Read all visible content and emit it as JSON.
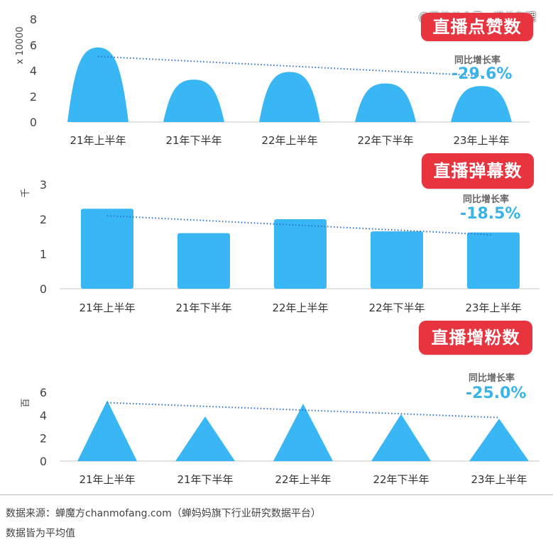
{
  "watermark": "@微信公众号：道总有理",
  "footer": {
    "source": "数据来源：蝉魔方chanmofang.com（蝉妈妈旗下行业研究数据平台）",
    "note": "数据皆为平均值"
  },
  "colors": {
    "accent": "#39b7f5",
    "badge": "#e8343f",
    "yoy": "#3ab4e8",
    "trend": "#2a6fd1"
  },
  "chart_data": [
    {
      "type": "bar",
      "shape": "bell",
      "title": "直播点赞数",
      "ylabel": "x 10000",
      "ylim": [
        0,
        8
      ],
      "yticks": [
        0,
        2,
        4,
        6,
        8
      ],
      "categories": [
        "21年上半年",
        "21年下半年",
        "22年上半年",
        "22年下半年",
        "23年上半年"
      ],
      "values": [
        5.8,
        3.3,
        3.9,
        3.0,
        2.8
      ],
      "trendline": [
        5.1,
        3.6
      ],
      "yoy_label": "同比增长率",
      "yoy_value": "-29.6%"
    },
    {
      "type": "bar",
      "title": "直播弹幕数",
      "ylabel": "千",
      "ylim": [
        0,
        3
      ],
      "yticks": [
        0,
        1,
        2,
        3
      ],
      "categories": [
        "21年上半年",
        "21年下半年",
        "22年上半年",
        "22年下半年",
        "23年上半年"
      ],
      "values": [
        2.3,
        1.6,
        2.0,
        1.65,
        1.62
      ],
      "trendline": [
        2.1,
        1.55
      ],
      "yoy_label": "同比增长率",
      "yoy_value": "-18.5%"
    },
    {
      "type": "bar",
      "shape": "triangle",
      "title": "直播增粉数",
      "ylabel": "百",
      "ylim": [
        0,
        6
      ],
      "yticks": [
        0,
        2,
        4,
        6
      ],
      "categories": [
        "21年上半年",
        "21年下半年",
        "22年上半年",
        "22年下半年",
        "23年上半年"
      ],
      "values": [
        5.3,
        3.9,
        5.0,
        4.1,
        3.7
      ],
      "trendline": [
        5.1,
        3.8
      ],
      "yoy_label": "同比增长率",
      "yoy_value": "-25.0%"
    }
  ]
}
